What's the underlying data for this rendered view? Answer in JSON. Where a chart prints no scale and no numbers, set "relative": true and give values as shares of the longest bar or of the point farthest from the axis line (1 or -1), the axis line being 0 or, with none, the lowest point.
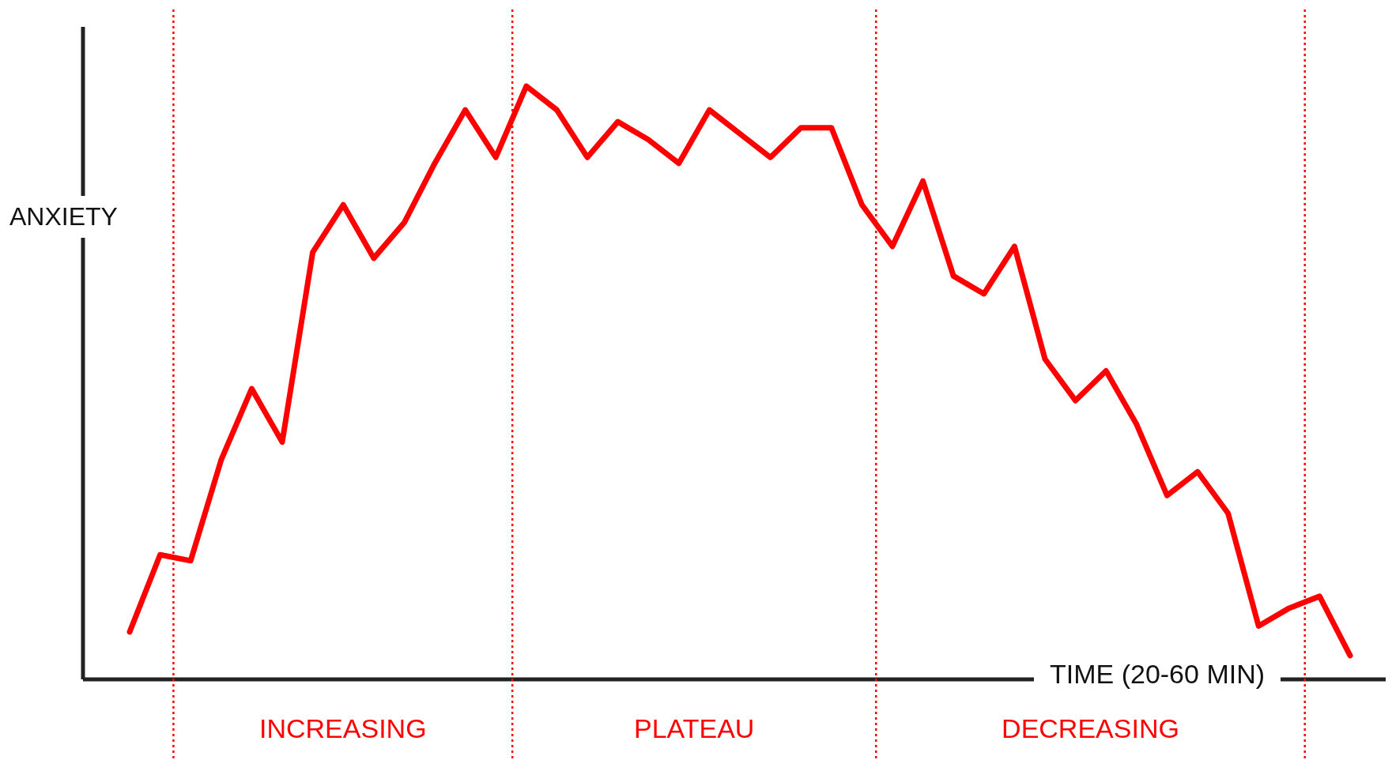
{
  "chart_data": {
    "type": "line",
    "relative": true,
    "xlabel": "TIME (20-60 MIN)",
    "ylabel": "ANXIETY",
    "grid": false,
    "legend": false,
    "marker": "none",
    "line_style": "solid",
    "categories": [
      null,
      null,
      null,
      null,
      null,
      null,
      null,
      null,
      null,
      null,
      null,
      null,
      null,
      null,
      null,
      null,
      null,
      null,
      null,
      null,
      null,
      null,
      null,
      null,
      null,
      null,
      null,
      null,
      null,
      null,
      null,
      null,
      null,
      null,
      null,
      null,
      null,
      null,
      null,
      null,
      null
    ],
    "series": [
      {
        "color": "#ff0000",
        "values": [
          0.08,
          0.21,
          0.2,
          0.37,
          0.49,
          0.4,
          0.72,
          0.8,
          0.71,
          0.77,
          0.87,
          0.96,
          0.88,
          1,
          0.96,
          0.88,
          0.94,
          0.91,
          0.87,
          0.96,
          0.92,
          0.88,
          0.93,
          0.93,
          0.8,
          0.73,
          0.84,
          0.68,
          0.65,
          0.73,
          0.54,
          0.47,
          0.52,
          0.43,
          0.31,
          0.35,
          0.28,
          0.09,
          0.12,
          0.14,
          0.04
        ]
      }
    ],
    "annotations": [
      "INCREASING",
      "PLATEAU",
      "DECREASING"
    ]
  }
}
